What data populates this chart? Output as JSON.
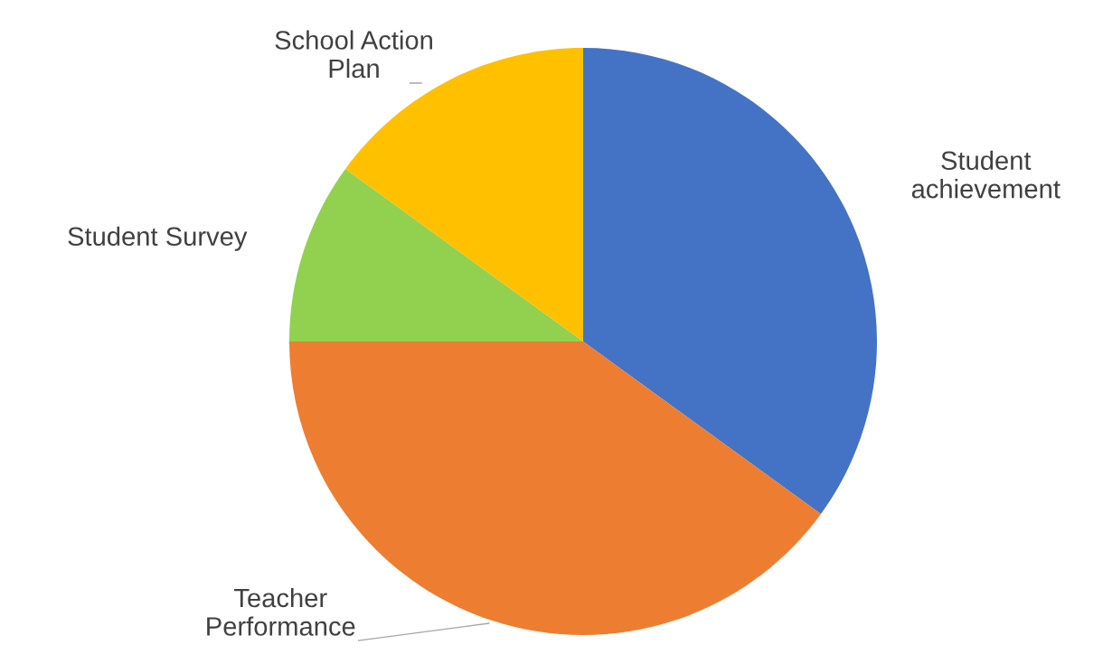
{
  "chart_data": {
    "type": "pie",
    "categories": [
      "Student\nachievement",
      "Teacher\nPerformance",
      "Student Survey",
      "School Action\nPlan"
    ],
    "values": [
      35,
      40,
      10,
      15
    ],
    "colors": [
      "#4472c4",
      "#ed7d31",
      "#92d050",
      "#ffc000"
    ]
  }
}
